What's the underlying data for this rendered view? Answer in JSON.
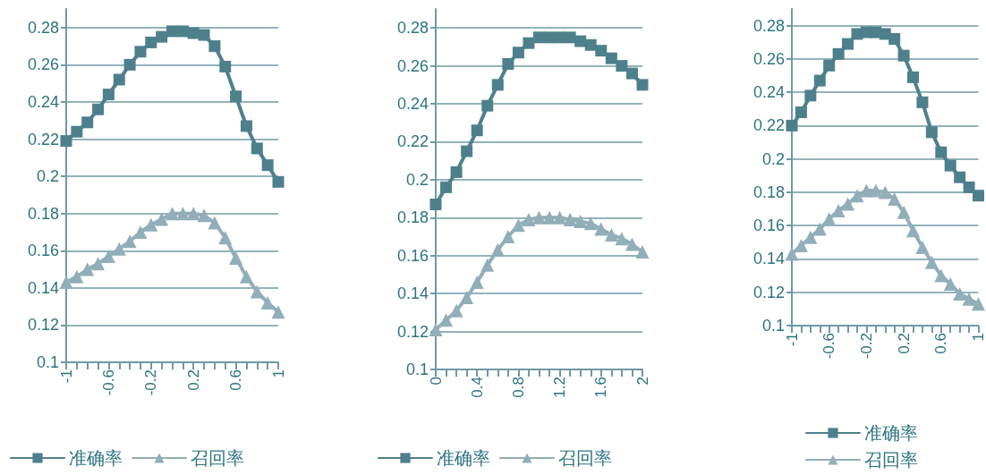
{
  "chart_data": [
    {
      "type": "line",
      "categories": [
        "-1",
        null,
        null,
        null,
        "-0.6",
        null,
        null,
        null,
        "-0.2",
        null,
        null,
        null,
        "0.2",
        null,
        null,
        null,
        "0.6",
        null,
        null,
        null,
        "1"
      ],
      "series": [
        {
          "name": "准确率",
          "color": "#4e808c",
          "marker": "square",
          "values": [
            0.219,
            0.224,
            0.229,
            0.236,
            0.244,
            0.252,
            0.26,
            0.267,
            0.272,
            0.275,
            0.278,
            0.278,
            0.277,
            0.276,
            0.27,
            0.259,
            0.243,
            0.227,
            0.215,
            0.206,
            0.197
          ]
        },
        {
          "name": "召回率",
          "color": "#92aeb8",
          "marker": "triangle",
          "values": [
            0.143,
            0.146,
            0.15,
            0.153,
            0.157,
            0.161,
            0.165,
            0.17,
            0.174,
            0.177,
            0.18,
            0.18,
            0.18,
            0.179,
            0.175,
            0.167,
            0.156,
            0.146,
            0.138,
            0.132,
            0.127
          ]
        }
      ],
      "ylim": [
        0.1,
        0.29
      ],
      "yticks": [
        0.1,
        0.12,
        0.14,
        0.16,
        0.18,
        0.2,
        0.22,
        0.24,
        0.26,
        0.28
      ],
      "grid": "y",
      "legend": "bottom",
      "line_style": "solid"
    },
    {
      "type": "line",
      "categories": [
        "0",
        null,
        null,
        null,
        "0.4",
        null,
        null,
        null,
        "0.8",
        null,
        null,
        null,
        "1.2",
        null,
        null,
        null,
        "1.6",
        null,
        null,
        null,
        "2"
      ],
      "series": [
        {
          "name": "准确率",
          "color": "#4e808c",
          "marker": "square",
          "values": [
            0.187,
            0.196,
            0.204,
            0.215,
            0.226,
            0.239,
            0.25,
            0.261,
            0.267,
            0.272,
            0.275,
            0.275,
            0.275,
            0.275,
            0.273,
            0.271,
            0.268,
            0.264,
            0.26,
            0.256,
            0.25
          ]
        },
        {
          "name": "召回率",
          "color": "#92aeb8",
          "marker": "triangle",
          "values": [
            0.121,
            0.126,
            0.131,
            0.138,
            0.146,
            0.155,
            0.163,
            0.17,
            0.176,
            0.179,
            0.18,
            0.18,
            0.18,
            0.179,
            0.178,
            0.177,
            0.174,
            0.171,
            0.169,
            0.166,
            0.162
          ]
        }
      ],
      "ylim": [
        0.1,
        0.29
      ],
      "yticks": [
        0.1,
        0.12,
        0.14,
        0.16,
        0.18,
        0.2,
        0.22,
        0.24,
        0.26,
        0.28
      ],
      "grid": "y",
      "legend": "bottom",
      "line_style": "solid"
    },
    {
      "type": "line",
      "categories": [
        "-1",
        null,
        null,
        null,
        "-0.6",
        null,
        null,
        null,
        "-0.2",
        null,
        null,
        null,
        "0.2",
        null,
        null,
        null,
        "0.6",
        null,
        null,
        null,
        "1"
      ],
      "series": [
        {
          "name": "准确率",
          "color": "#4e808c",
          "marker": "square",
          "values": [
            0.22,
            0.228,
            0.238,
            0.247,
            0.256,
            0.263,
            0.269,
            0.275,
            0.276,
            0.276,
            0.275,
            0.272,
            0.262,
            0.249,
            0.234,
            0.216,
            0.204,
            0.196,
            0.189,
            0.183,
            0.178
          ]
        },
        {
          "name": "召回率",
          "color": "#92aeb8",
          "marker": "triangle",
          "values": [
            0.143,
            0.148,
            0.153,
            0.158,
            0.164,
            0.169,
            0.173,
            0.178,
            0.181,
            0.181,
            0.18,
            0.176,
            0.168,
            0.157,
            0.147,
            0.138,
            0.13,
            0.125,
            0.119,
            0.116,
            0.113
          ]
        }
      ],
      "ylim": [
        0.1,
        0.29
      ],
      "yticks": [
        0.1,
        0.12,
        0.14,
        0.16,
        0.18,
        0.2,
        0.22,
        0.24,
        0.26,
        0.28
      ],
      "grid": "y",
      "legend": "bottom",
      "line_style": "solid"
    }
  ]
}
